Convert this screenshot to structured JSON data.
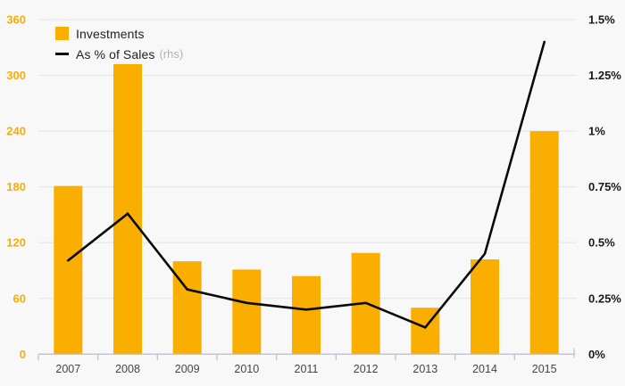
{
  "chart_data": {
    "type": "bar",
    "subtype": "bar+line dual axis",
    "categories": [
      "2007",
      "2008",
      "2009",
      "2010",
      "2011",
      "2012",
      "2013",
      "2014",
      "2015"
    ],
    "series": [
      {
        "name": "Investments",
        "type": "bar",
        "axis": "left",
        "color": "#f9ae00",
        "values": [
          181,
          312,
          100,
          91,
          84,
          109,
          50,
          102,
          240
        ]
      },
      {
        "name": "As % of Sales",
        "suffix": "(rhs)",
        "type": "line",
        "axis": "right",
        "color": "#0a0a0a",
        "values": [
          0.42,
          0.63,
          0.29,
          0.23,
          0.2,
          0.23,
          0.12,
          0.45,
          1.4
        ]
      }
    ],
    "title": "",
    "xlabel": "",
    "ylabel": "",
    "left_axis": {
      "min": 0,
      "max": 360,
      "step": 60,
      "tick_labels": [
        "0",
        "60",
        "120",
        "180",
        "240",
        "300",
        "360"
      ],
      "label_color": "#f9ae00"
    },
    "right_axis": {
      "min": 0,
      "max": 1.5,
      "tick_labels": [
        "0%",
        "0.25%",
        "0.5%",
        "0.75%",
        "1%",
        "1.25%",
        "1.5%"
      ],
      "label_color": "#1a1a1a"
    },
    "grid": true,
    "legend_position": "top-left",
    "background": "#f8f8f8",
    "gridline_color": "#e4e4e4",
    "axis_line_color": "#b9c3dd",
    "x_label_color": "#454545"
  },
  "legend": {
    "investments_label": "Investments",
    "sales_label": "As % of Sales",
    "sales_suffix": "(rhs)"
  }
}
